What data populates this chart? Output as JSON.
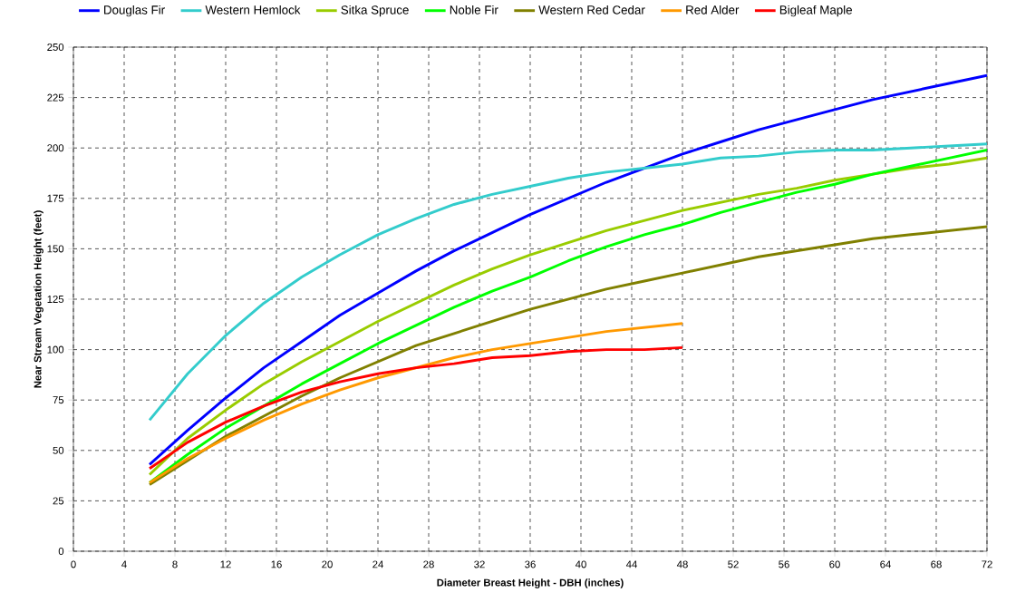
{
  "chart_data": {
    "type": "line",
    "xlabel": "Diameter Breast Height - DBH (inches)",
    "ylabel": "Near Stream Vegetation Height (feet)",
    "x": [
      6,
      9,
      12,
      15,
      18,
      21,
      24,
      27,
      30,
      33,
      36,
      39,
      42,
      45,
      48,
      51,
      54,
      57,
      60,
      63,
      66,
      69,
      72
    ],
    "series": [
      {
        "name": "Douglas Fir",
        "color": "#0000ff",
        "values": [
          43,
          60,
          76,
          91,
          104,
          117,
          128,
          139,
          149,
          158,
          167,
          175,
          183,
          190,
          197,
          203,
          209,
          214,
          219,
          224,
          228,
          232,
          236
        ]
      },
      {
        "name": "Western Hemlock",
        "color": "#33cccc",
        "values": [
          65,
          88,
          107,
          123,
          136,
          147,
          157,
          165,
          172,
          177,
          181,
          185,
          188,
          190,
          192,
          195,
          196,
          198,
          199,
          199,
          200,
          201,
          202
        ]
      },
      {
        "name": "Sitka Spruce",
        "color": "#99cc00",
        "values": [
          38,
          56,
          70,
          83,
          94,
          104,
          114,
          123,
          132,
          140,
          147,
          153,
          159,
          164,
          169,
          173,
          177,
          180,
          184,
          187,
          190,
          192,
          195
        ]
      },
      {
        "name": "Noble Fir",
        "color": "#00ff00",
        "values": [
          34,
          48,
          61,
          72,
          83,
          93,
          103,
          112,
          121,
          129,
          136,
          144,
          151,
          157,
          162,
          168,
          173,
          178,
          182,
          187,
          191,
          195,
          199
        ]
      },
      {
        "name": "Western Red Cedar",
        "color": "#808000",
        "values": [
          33,
          45,
          57,
          67,
          77,
          86,
          94,
          102,
          108,
          114,
          120,
          125,
          130,
          134,
          138,
          142,
          146,
          149,
          152,
          155,
          157,
          159,
          161
        ]
      },
      {
        "name": "Red Alder",
        "color": "#ff9900",
        "values": [
          34,
          46,
          56,
          65,
          73,
          80,
          86,
          91,
          96,
          100,
          103,
          106,
          109,
          111,
          113,
          null,
          null,
          null,
          null,
          null,
          null,
          null,
          null
        ]
      },
      {
        "name": "Bigleaf Maple",
        "color": "#ff0000",
        "values": [
          41,
          54,
          64,
          72,
          79,
          84,
          88,
          91,
          93,
          96,
          97,
          99,
          100,
          100,
          101,
          null,
          null,
          null,
          null,
          null,
          null,
          null,
          null
        ]
      }
    ],
    "xlim": [
      0,
      72
    ],
    "xticks": [
      0,
      4,
      8,
      12,
      16,
      20,
      24,
      28,
      32,
      36,
      40,
      44,
      48,
      52,
      56,
      60,
      64,
      68,
      72
    ],
    "ylim": [
      0,
      250
    ],
    "yticks": [
      0,
      25,
      50,
      75,
      100,
      125,
      150,
      175,
      200,
      225,
      250
    ],
    "grid": true,
    "legend": "top",
    "marker": "none",
    "line_style": "solid"
  }
}
